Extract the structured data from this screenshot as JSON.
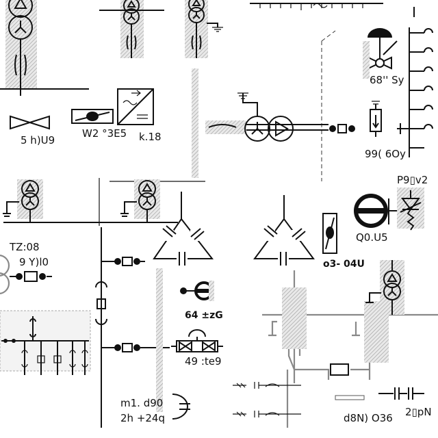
{
  "labels": {
    "l1": "5 h)U9",
    "l2": "W2 °3E5",
    "l3": "k.18",
    "l4": "68'' Sy",
    "l5": "99( 6Oy",
    "l6": "P9▯v2",
    "l7": "Q0.U5",
    "l8": "TZ:08",
    "l9": "9 Y)l0",
    "l10": "o3- 04U",
    "l11": "64 ±zG",
    "l12": "49 :te9",
    "l13": "m1. d90",
    "l14": "2h +24q",
    "l15": "d8N) O36",
    "l16": "2▯pN"
  },
  "colors": {
    "ink": "#111111",
    "gray": "#888888",
    "hatch": "#bbbbbb"
  }
}
